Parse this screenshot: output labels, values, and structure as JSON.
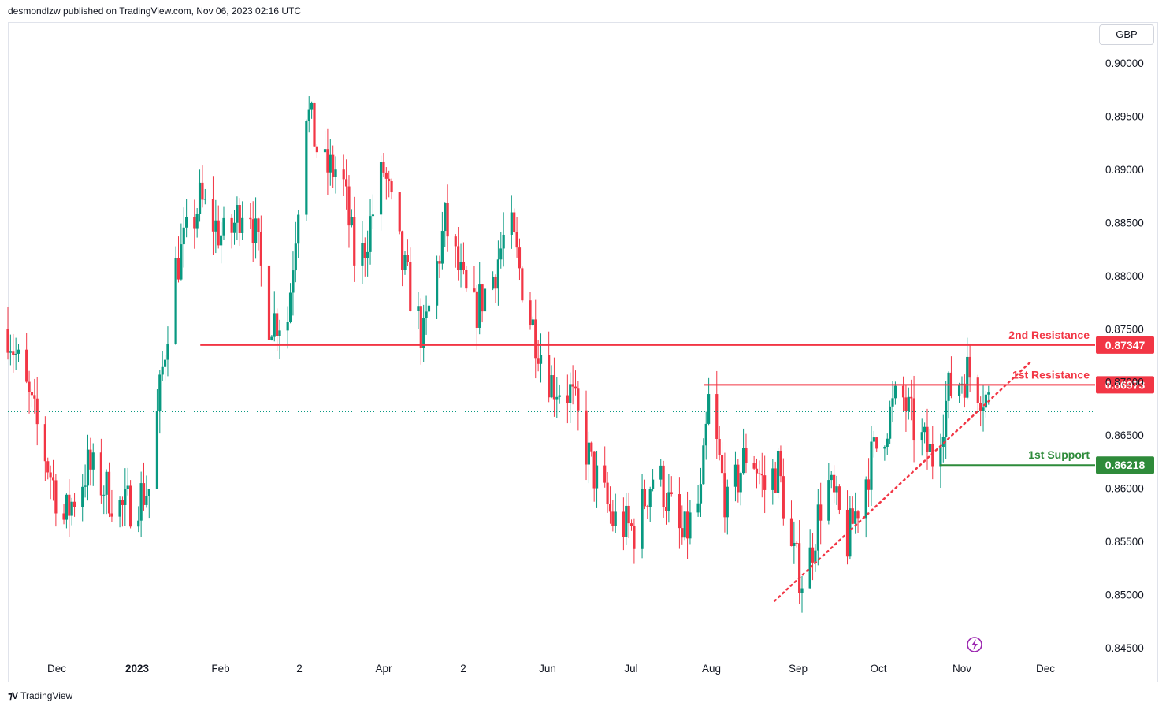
{
  "header": {
    "text": "desmondlzw published on TradingView.com, Nov 06, 2023 02:16 UTC"
  },
  "currency": "GBP",
  "brand": {
    "name": "TradingView"
  },
  "colors": {
    "up": "#089981",
    "down": "#f23645",
    "resistance": "#f23645",
    "support": "#2e8b3a",
    "trend": "#f23645",
    "last": "#089981"
  },
  "chart_data": {
    "type": "candlestick",
    "y_axis": {
      "ylim": [
        0.8425,
        0.9025
      ],
      "ticks": [
        "0.90000",
        "0.89500",
        "0.89000",
        "0.88500",
        "0.88000",
        "0.87500",
        "0.87000",
        "0.86500",
        "0.86000",
        "0.85500",
        "0.85000",
        "0.84500"
      ],
      "tick_values": [
        0.9,
        0.895,
        0.89,
        0.885,
        0.88,
        0.875,
        0.87,
        0.865,
        0.86,
        0.855,
        0.85,
        0.845
      ]
    },
    "x_axis": {
      "labels": [
        "Dec",
        "2023",
        "Feb",
        "2",
        "Apr",
        "2",
        "Jun",
        "Jul",
        "Aug",
        "Sep",
        "Oct",
        "Nov",
        "Dec"
      ]
    },
    "anchors": [
      {
        "x": "2022-11-07",
        "y": 0.875
      },
      {
        "x": "2022-11-20",
        "y": 0.864
      },
      {
        "x": "2022-11-28",
        "y": 0.857
      },
      {
        "x": "2022-12-07",
        "y": 0.862
      },
      {
        "x": "2022-12-20",
        "y": 0.858
      },
      {
        "x": "2022-12-30",
        "y": 0.86
      },
      {
        "x": "2023-01-08",
        "y": 0.88
      },
      {
        "x": "2023-01-18",
        "y": 0.887
      },
      {
        "x": "2023-01-28",
        "y": 0.883
      },
      {
        "x": "2023-02-05",
        "y": 0.888
      },
      {
        "x": "2023-02-13",
        "y": 0.876
      },
      {
        "x": "2023-02-20",
        "y": 0.876
      },
      {
        "x": "2023-02-27",
        "y": 0.896
      },
      {
        "x": "2023-03-05",
        "y": 0.89
      },
      {
        "x": "2023-03-12",
        "y": 0.89
      },
      {
        "x": "2023-03-18",
        "y": 0.88
      },
      {
        "x": "2023-03-28",
        "y": 0.89
      },
      {
        "x": "2023-04-04",
        "y": 0.881
      },
      {
        "x": "2023-04-12",
        "y": 0.874
      },
      {
        "x": "2023-04-20",
        "y": 0.885
      },
      {
        "x": "2023-04-30",
        "y": 0.876
      },
      {
        "x": "2023-05-08",
        "y": 0.88
      },
      {
        "x": "2023-05-14",
        "y": 0.885
      },
      {
        "x": "2023-05-22",
        "y": 0.876
      },
      {
        "x": "2023-05-30",
        "y": 0.87
      },
      {
        "x": "2023-06-06",
        "y": 0.869
      },
      {
        "x": "2023-06-14",
        "y": 0.862
      },
      {
        "x": "2023-06-22",
        "y": 0.857
      },
      {
        "x": "2023-06-30",
        "y": 0.856
      },
      {
        "x": "2023-07-08",
        "y": 0.862
      },
      {
        "x": "2023-07-18",
        "y": 0.855
      },
      {
        "x": "2023-07-25",
        "y": 0.859
      },
      {
        "x": "2023-07-28",
        "y": 0.868
      },
      {
        "x": "2023-08-04",
        "y": 0.858
      },
      {
        "x": "2023-08-12",
        "y": 0.864
      },
      {
        "x": "2023-08-18",
        "y": 0.86
      },
      {
        "x": "2023-08-23",
        "y": 0.862
      },
      {
        "x": "2023-08-28",
        "y": 0.854
      },
      {
        "x": "2023-09-02",
        "y": 0.851
      },
      {
        "x": "2023-09-10",
        "y": 0.861
      },
      {
        "x": "2023-09-18",
        "y": 0.855
      },
      {
        "x": "2023-09-26",
        "y": 0.862
      },
      {
        "x": "2023-10-04",
        "y": 0.867
      },
      {
        "x": "2023-10-08",
        "y": 0.869
      },
      {
        "x": "2023-10-14",
        "y": 0.865
      },
      {
        "x": "2023-10-20",
        "y": 0.863
      },
      {
        "x": "2023-10-26",
        "y": 0.869
      },
      {
        "x": "2023-11-02",
        "y": 0.871
      },
      {
        "x": "2023-11-08",
        "y": 0.869
      },
      {
        "x": "2023-11-12",
        "y": 0.8672
      }
    ],
    "levels": [
      {
        "name": "2nd Resistance",
        "value": "0.87347",
        "y": 0.87347,
        "x_start": "2023-01-23",
        "color": "#f23645"
      },
      {
        "name": "1st Resistance",
        "value": "0.86973",
        "y": 0.86973,
        "x_start": "2023-07-28",
        "color": "#f23645"
      },
      {
        "name": "1st Support",
        "value": "0.86218",
        "y": 0.86218,
        "x_start": "2023-10-23",
        "color": "#2e8b3a"
      }
    ],
    "trendline": {
      "x1": "2023-08-23",
      "y1": 0.8494,
      "x2": "2023-11-26",
      "y2": 0.872,
      "style": "dotted"
    },
    "last_price": {
      "y": 0.8672
    },
    "grid": false
  }
}
